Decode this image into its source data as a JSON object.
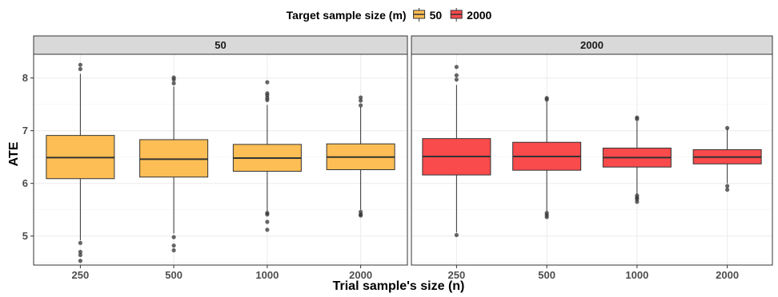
{
  "chart_data": {
    "type": "boxplot",
    "xlabel": "Trial sample's size (n)",
    "ylabel": "ATE",
    "ylim": [
      4.45,
      8.45
    ],
    "yticks": [
      5,
      6,
      7,
      8
    ],
    "categories": [
      "250",
      "500",
      "1000",
      "2000"
    ],
    "grid": true,
    "legend": {
      "title": "Target sample size (m)",
      "position": "top",
      "entries": [
        {
          "label": "50",
          "color": "#FDBE55"
        },
        {
          "label": "2000",
          "color": "#F94A4C"
        }
      ]
    },
    "panels": [
      {
        "strip": "50",
        "color": "#FDBE55",
        "boxes": [
          {
            "x": "250",
            "q1": 6.09,
            "median": 6.49,
            "q3": 6.91,
            "whisker_low": 4.92,
            "whisker_high": 8.08,
            "outliers": [
              8.25,
              8.17,
              4.87,
              4.7,
              4.64,
              4.53
            ]
          },
          {
            "x": "500",
            "q1": 6.12,
            "median": 6.46,
            "q3": 6.83,
            "whisker_low": 5.05,
            "whisker_high": 7.84,
            "outliers": [
              8.01,
              7.97,
              7.9,
              4.98,
              4.82,
              4.73
            ]
          },
          {
            "x": "1000",
            "q1": 6.23,
            "median": 6.48,
            "q3": 6.74,
            "whisker_low": 5.47,
            "whisker_high": 7.49,
            "outliers": [
              7.92,
              7.71,
              7.67,
              7.62,
              7.58,
              5.44,
              5.41,
              5.27,
              5.12
            ]
          },
          {
            "x": "2000",
            "q1": 6.26,
            "median": 6.5,
            "q3": 6.75,
            "whisker_low": 5.5,
            "whisker_high": 7.45,
            "outliers": [
              7.63,
              7.57,
              7.48,
              5.46,
              5.41,
              5.39
            ]
          }
        ]
      },
      {
        "strip": "2000",
        "color": "#F94A4C",
        "boxes": [
          {
            "x": "250",
            "q1": 6.16,
            "median": 6.51,
            "q3": 6.85,
            "whisker_low": 5.07,
            "whisker_high": 7.87,
            "outliers": [
              8.21,
              8.05,
              7.97,
              5.02
            ]
          },
          {
            "x": "500",
            "q1": 6.25,
            "median": 6.51,
            "q3": 6.78,
            "whisker_low": 5.47,
            "whisker_high": 7.56,
            "outliers": [
              7.62,
              7.59,
              5.44,
              5.4,
              5.36
            ]
          },
          {
            "x": "1000",
            "q1": 6.31,
            "median": 6.49,
            "q3": 6.67,
            "whisker_low": 5.79,
            "whisker_high": 7.18,
            "outliers": [
              7.25,
              7.22,
              5.77,
              5.73,
              5.7,
              5.65
            ]
          },
          {
            "x": "2000",
            "q1": 6.37,
            "median": 6.5,
            "q3": 6.64,
            "whisker_low": 6.0,
            "whisker_high": 7.04,
            "outliers": [
              7.05,
              5.95,
              5.88
            ]
          }
        ]
      }
    ]
  }
}
